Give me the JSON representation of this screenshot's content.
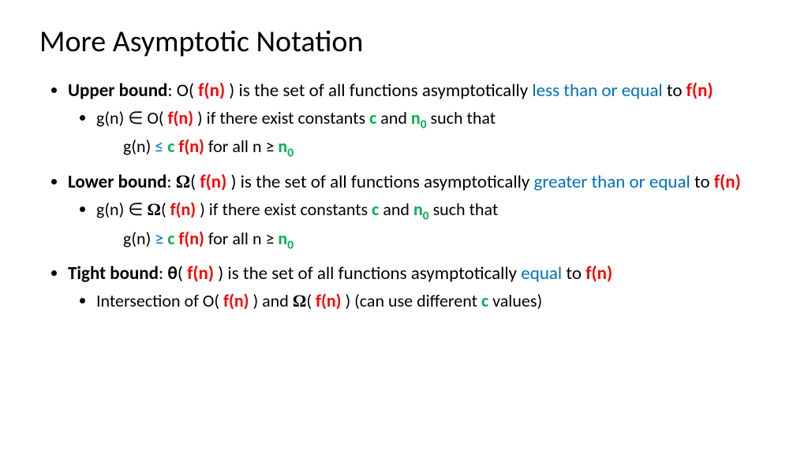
{
  "title": "More Asymptotic Notation",
  "colors": {
    "red": "#ff0000",
    "blue": "#0070c0",
    "green": "#00b050",
    "text": "#000000",
    "background": "#ffffff"
  },
  "fontsize": {
    "title": 38,
    "bullet": 23,
    "subbullet": 22
  },
  "bullets": [
    {
      "bold_label": "Upper bound",
      "line1_a": ": O( ",
      "fn1": "f(n)",
      "line1_b": " ) is the set of all functions asymptotically ",
      "blue_phrase": "less than or equal",
      "line1_c": " to ",
      "fn2": "f(n)",
      "sub": {
        "a": "g(n) ∈ O( ",
        "fn": "f(n)",
        "b": " ) if there exist constants ",
        "c": "c",
        "d": " and ",
        "n0": "n",
        "n0sub": "0",
        "e": " such that",
        "indent_a": "g(n) ",
        "leq": "≤",
        "indent_b": " ",
        "c2": "c",
        "indent_c": " ",
        "fn2": "f(n)",
        "indent_d": " for all n ≥ ",
        "n02": "n",
        "n02sub": "0"
      }
    },
    {
      "bold_label": "Lower bound",
      "line1_a": ": ",
      "omega": "Ω",
      "line1_ab": "( ",
      "fn1": "f(n)",
      "line1_b": " ) is the set of all functions asymptotically ",
      "blue_phrase": "greater than or equal",
      "line1_c": " to ",
      "fn2": "f(n)",
      "sub": {
        "a": "g(n) ∈ ",
        "omega": "Ω",
        "ab": "( ",
        "fn": "f(n)",
        "b": " ) if there exist constants ",
        "c": "c",
        "d": " and ",
        "n0": "n",
        "n0sub": "0",
        "e": " such that",
        "indent_a": "g(n) ",
        "geq": "≥",
        "indent_b": " ",
        "c2": "c",
        "indent_c": " ",
        "fn2": "f(n)",
        "indent_d": " for all n ≥ ",
        "n02": "n",
        "n02sub": "0"
      }
    },
    {
      "bold_label": "Tight bound",
      "line1_a": ": ",
      "theta": "θ",
      "line1_ab": "( ",
      "fn1": "f(n)",
      "line1_b": " ) is the set of all functions asymptotically ",
      "blue_phrase": "equal",
      "line1_c": " to ",
      "fn2": "f(n)",
      "sub": {
        "a": "Intersection of O( ",
        "fn": "f(n)",
        "b": " ) and ",
        "omega": "Ω",
        "c": "( ",
        "fn2": "f(n)",
        "d": " )   (can use different ",
        "cvar": "c",
        "e": " values)"
      }
    }
  ]
}
